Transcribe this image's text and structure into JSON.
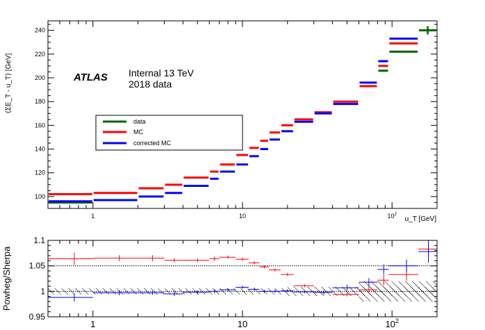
{
  "chart_data": [
    {
      "type": "line",
      "panel": "top",
      "xscale": "log",
      "xlim": [
        0.5,
        200
      ],
      "ylim": [
        90,
        248
      ],
      "grid": false,
      "xlabel": "u_T [GeV]",
      "ylabel": "⟨ΣE_T - u_T⟩ [GeV]",
      "xtick_labels": [
        {
          "x": 1,
          "label": "1"
        },
        {
          "x": 10,
          "label": "10"
        },
        {
          "x": 100,
          "label": "10^2"
        }
      ],
      "ytick_labels": [
        {
          "y": 100,
          "label": "100"
        },
        {
          "y": 120,
          "label": "120"
        },
        {
          "y": 140,
          "label": "140"
        },
        {
          "y": 160,
          "label": "160"
        },
        {
          "y": 180,
          "label": "180"
        },
        {
          "y": 200,
          "label": "200"
        },
        {
          "y": 220,
          "label": "220"
        },
        {
          "y": 240,
          "label": "240"
        }
      ],
      "annotations": {
        "experiment": "ATLAS",
        "status_line1": "Internal 13 TeV",
        "status_line2": "2018 data"
      },
      "legend": {
        "placement": "left-middle",
        "entries": [
          {
            "label": "data",
            "color": "#006400"
          },
          {
            "label": "MC",
            "color": "#ff0000"
          },
          {
            "label": "corrected MC",
            "color": "#0000ff"
          }
        ]
      },
      "bins": [
        [
          0.5,
          1
        ],
        [
          1,
          2
        ],
        [
          2,
          3
        ],
        [
          3,
          4
        ],
        [
          4,
          6
        ],
        [
          6,
          7
        ],
        [
          7,
          9
        ],
        [
          9,
          11
        ],
        [
          11,
          13
        ],
        [
          13,
          15
        ],
        [
          15,
          18
        ],
        [
          18,
          22
        ],
        [
          22,
          30
        ],
        [
          30,
          40
        ],
        [
          40,
          60
        ],
        [
          60,
          80
        ],
        [
          80,
          95
        ],
        [
          95,
          150
        ],
        [
          150,
          200
        ]
      ],
      "series": [
        {
          "name": "data",
          "color": "#006400",
          "values": [
            95,
            null,
            null,
            null,
            null,
            null,
            null,
            null,
            null,
            null,
            null,
            null,
            null,
            null,
            null,
            null,
            206,
            222,
            240
          ]
        },
        {
          "name": "MC",
          "color": "#ff0000",
          "values": [
            102,
            103,
            107,
            110,
            116,
            121,
            127,
            135,
            141,
            147,
            154,
            160,
            165,
            171,
            180,
            193,
            210,
            229,
            null
          ]
        },
        {
          "name": "corrected MC",
          "color": "#0000ff",
          "values": [
            96,
            97,
            100,
            103,
            109,
            115,
            121,
            127,
            134,
            140,
            148,
            155,
            163,
            170,
            178,
            196,
            214,
            233,
            null
          ]
        }
      ]
    },
    {
      "type": "scatter",
      "panel": "ratio",
      "xscale": "log",
      "xlim": [
        0.5,
        200
      ],
      "ylim": [
        0.95,
        1.1
      ],
      "grid": false,
      "ylabel": "Powheg/Sherpa",
      "reference_lines": [
        1.0,
        1.05
      ],
      "xtick_labels": [
        {
          "x": 1,
          "label": "1"
        },
        {
          "x": 10,
          "label": "10"
        },
        {
          "x": 100,
          "label": "10^2"
        }
      ],
      "ytick_labels": [
        {
          "y": 0.95,
          "label": "0.95"
        },
        {
          "y": 1.0,
          "label": "1"
        },
        {
          "y": 1.05,
          "label": "1.05"
        },
        {
          "y": 1.1,
          "label": "1.1"
        }
      ],
      "hatched_band": "systematic uncertainty around 1",
      "series": [
        {
          "name": "MC",
          "color": "#ff0000",
          "points": [
            {
              "x": 0.75,
              "y": 1.064,
              "xerr": [
                0.5,
                1
              ],
              "yerr": 0.012
            },
            {
              "x": 1.5,
              "y": 1.065,
              "xerr": [
                1,
                2
              ],
              "yerr": 0.006
            },
            {
              "x": 2.5,
              "y": 1.065,
              "xerr": [
                2,
                3
              ],
              "yerr": 0.006
            },
            {
              "x": 3.5,
              "y": 1.061,
              "xerr": [
                3,
                4
              ],
              "yerr": 0.004
            },
            {
              "x": 5,
              "y": 1.061,
              "xerr": [
                4,
                6
              ],
              "yerr": 0.004
            },
            {
              "x": 6.5,
              "y": 1.064,
              "xerr": [
                6,
                7
              ],
              "yerr": 0.004
            },
            {
              "x": 8,
              "y": 1.067,
              "xerr": [
                7,
                9
              ],
              "yerr": 0.003
            },
            {
              "x": 10,
              "y": 1.063,
              "xerr": [
                9,
                11
              ],
              "yerr": 0.003
            },
            {
              "x": 12,
              "y": 1.056,
              "xerr": [
                11,
                13
              ],
              "yerr": 0.003
            },
            {
              "x": 14,
              "y": 1.048,
              "xerr": [
                13,
                15
              ],
              "yerr": 0.003
            },
            {
              "x": 16.5,
              "y": 1.042,
              "xerr": [
                15,
                18
              ],
              "yerr": 0.003
            },
            {
              "x": 20,
              "y": 1.033,
              "xerr": [
                18,
                22
              ],
              "yerr": 0.003
            },
            {
              "x": 26,
              "y": 1.011,
              "xerr": [
                22,
                30
              ],
              "yerr": 0.003
            },
            {
              "x": 35,
              "y": 0.998,
              "xerr": [
                30,
                40
              ],
              "yerr": 0.004
            },
            {
              "x": 50,
              "y": 0.994,
              "xerr": [
                40,
                60
              ],
              "yerr": 0.004
            },
            {
              "x": 70,
              "y": 1.003,
              "xerr": [
                60,
                80
              ],
              "yerr": 0.006
            },
            {
              "x": 88,
              "y": 1.022,
              "xerr": [
                80,
                95
              ],
              "yerr": 0.01
            },
            {
              "x": 125,
              "y": 1.033,
              "xerr": [
                95,
                150
              ],
              "yerr": 0.012
            },
            {
              "x": 175,
              "y": 1.083,
              "xerr": [
                150,
                200
              ],
              "yerr": 0.018
            }
          ]
        },
        {
          "name": "corrected MC",
          "color": "#0000ff",
          "points": [
            {
              "x": 0.75,
              "y": 0.988,
              "xerr": [
                0.5,
                1
              ],
              "yerr": 0.008
            },
            {
              "x": 1.5,
              "y": 0.997,
              "xerr": [
                1,
                2
              ],
              "yerr": 0.005
            },
            {
              "x": 2.5,
              "y": 0.997,
              "xerr": [
                2,
                3
              ],
              "yerr": 0.004
            },
            {
              "x": 3.5,
              "y": 0.995,
              "xerr": [
                3,
                4
              ],
              "yerr": 0.004
            },
            {
              "x": 5,
              "y": 0.998,
              "xerr": [
                4,
                6
              ],
              "yerr": 0.004
            },
            {
              "x": 6.5,
              "y": 1.0,
              "xerr": [
                6,
                7
              ],
              "yerr": 0.004
            },
            {
              "x": 8,
              "y": 1.003,
              "xerr": [
                7,
                9
              ],
              "yerr": 0.003
            },
            {
              "x": 10,
              "y": 1.008,
              "xerr": [
                9,
                11
              ],
              "yerr": 0.003
            },
            {
              "x": 12,
              "y": 1.004,
              "xerr": [
                11,
                13
              ],
              "yerr": 0.003
            },
            {
              "x": 14,
              "y": 1.0,
              "xerr": [
                13,
                15
              ],
              "yerr": 0.003
            },
            {
              "x": 16.5,
              "y": 1.0,
              "xerr": [
                15,
                18
              ],
              "yerr": 0.003
            },
            {
              "x": 20,
              "y": 1.001,
              "xerr": [
                18,
                22
              ],
              "yerr": 0.003
            },
            {
              "x": 26,
              "y": 0.999,
              "xerr": [
                22,
                30
              ],
              "yerr": 0.003
            },
            {
              "x": 35,
              "y": 0.998,
              "xerr": [
                30,
                40
              ],
              "yerr": 0.004
            },
            {
              "x": 50,
              "y": 1.007,
              "xerr": [
                40,
                60
              ],
              "yerr": 0.006
            },
            {
              "x": 70,
              "y": 1.018,
              "xerr": [
                60,
                80
              ],
              "yerr": 0.008
            },
            {
              "x": 88,
              "y": 1.043,
              "xerr": [
                80,
                95
              ],
              "yerr": 0.01
            },
            {
              "x": 125,
              "y": 1.05,
              "xerr": [
                95,
                150
              ],
              "yerr": 0.012
            },
            {
              "x": 175,
              "y": 1.078,
              "xerr": [
                150,
                200
              ],
              "yerr": 0.022
            }
          ]
        }
      ]
    }
  ]
}
